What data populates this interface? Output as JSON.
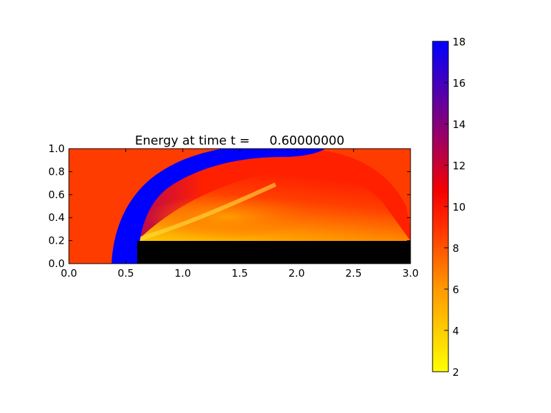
{
  "chart_data": {
    "type": "heatmap",
    "title": "Energy at time t =     0.60000000",
    "xlabel": "",
    "ylabel": "",
    "xlim": [
      0.0,
      3.0
    ],
    "ylim": [
      0.0,
      1.0
    ],
    "x_ticks": [
      "0.0",
      "0.5",
      "1.0",
      "1.5",
      "2.0",
      "2.5",
      "3.0"
    ],
    "y_ticks": [
      "0.0",
      "0.2",
      "0.4",
      "0.6",
      "0.8",
      "1.0"
    ],
    "grid": false,
    "colorbar": {
      "min": 2,
      "max": 18,
      "ticks": [
        "2",
        "4",
        "6",
        "8",
        "10",
        "12",
        "14",
        "16",
        "18"
      ],
      "colormap": [
        "#ffff00",
        "#ff8000",
        "#ff0000",
        "#8a0070",
        "#0000ff"
      ]
    },
    "field": {
      "ambient_value": 8.5,
      "shock_value": 18,
      "obstacle_color": "#000000",
      "obstacle": {
        "x": [
          0.6,
          3.0
        ],
        "y": [
          0.0,
          0.2
        ]
      },
      "shock_front": [
        [
          0.37,
          0.0
        ],
        [
          0.4,
          0.2
        ],
        [
          0.5,
          0.42
        ],
        [
          0.65,
          0.6
        ],
        [
          0.85,
          0.75
        ],
        [
          1.1,
          0.88
        ],
        [
          1.4,
          0.97
        ],
        [
          1.7,
          1.0
        ],
        [
          2.0,
          1.0
        ],
        [
          2.3,
          1.0
        ]
      ]
    }
  }
}
